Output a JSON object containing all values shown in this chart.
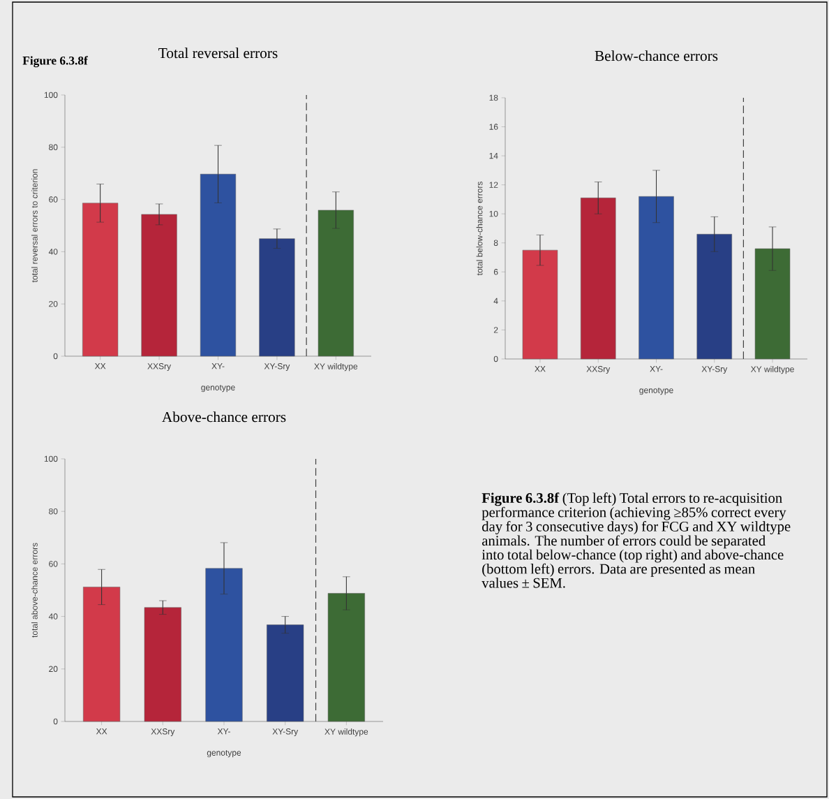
{
  "chart_data": [
    {
      "type": "other",
      "annotations": [
        "Figure 6.3.8f"
      ]
    },
    {
      "type": "bar",
      "title": "Total reversal errors",
      "xlabel": "genotype",
      "ylabel": "total reversal errors to criterion",
      "categories": [
        "XX",
        "XXSry",
        "XY-",
        "XY-Sry",
        "XY wildtype"
      ],
      "values": [
        58.6,
        54.3,
        69.7,
        45.0,
        55.9
      ],
      "errors": [
        7.3,
        4.0,
        11.0,
        3.7,
        7.0
      ],
      "colors": [
        "#d23a4a",
        "#b5253a",
        "#2e52a0",
        "#283f85",
        "#3d6b35"
      ],
      "ylim": [
        0,
        100
      ],
      "yticks": [
        0,
        20,
        40,
        60,
        80,
        100
      ]
    },
    {
      "type": "bar",
      "title": "Below-chance errors",
      "xlabel": "genotype",
      "ylabel": "total below-chance errors",
      "categories": [
        "XX",
        "XXSry",
        "XY-",
        "XY-Sry",
        "XY wildtype"
      ],
      "values": [
        7.5,
        11.1,
        11.2,
        8.6,
        7.6
      ],
      "errors": [
        1.05,
        1.1,
        1.8,
        1.2,
        1.5
      ],
      "colors": [
        "#d23a4a",
        "#b5253a",
        "#2e52a0",
        "#283f85",
        "#3d6b35"
      ],
      "ylim": [
        0,
        18
      ],
      "yticks": [
        0,
        2,
        4,
        6,
        8,
        10,
        12,
        14,
        16,
        18
      ]
    },
    {
      "type": "bar",
      "title": "Above-chance errors",
      "xlabel": "genotype",
      "ylabel": "total above-chance errors",
      "categories": [
        "XX",
        "XXSry",
        "XY-",
        "XY-Sry",
        "XY wildtype"
      ],
      "values": [
        51.2,
        43.4,
        58.3,
        36.8,
        48.8
      ],
      "errors": [
        6.7,
        2.6,
        9.8,
        3.2,
        6.3
      ],
      "colors": [
        "#d23a4a",
        "#b5253a",
        "#2e52a0",
        "#283f85",
        "#3d6b35"
      ],
      "ylim": [
        0,
        100
      ],
      "yticks": [
        0,
        20,
        40,
        60,
        80,
        100
      ]
    },
    {
      "type": "other",
      "annotations": [
        "**Figure 6.3.8f** (Top left) Total errors to re-acquisition performance criterion (achieving ≥85% correct every day for 3 consecutive days) for FCG and XY wildtype animals.  The number of errors could be separated into total below-chance (top right) and above-chance (bottom left) errors.  Data are presented as mean values ± SEM."
      ]
    }
  ]
}
